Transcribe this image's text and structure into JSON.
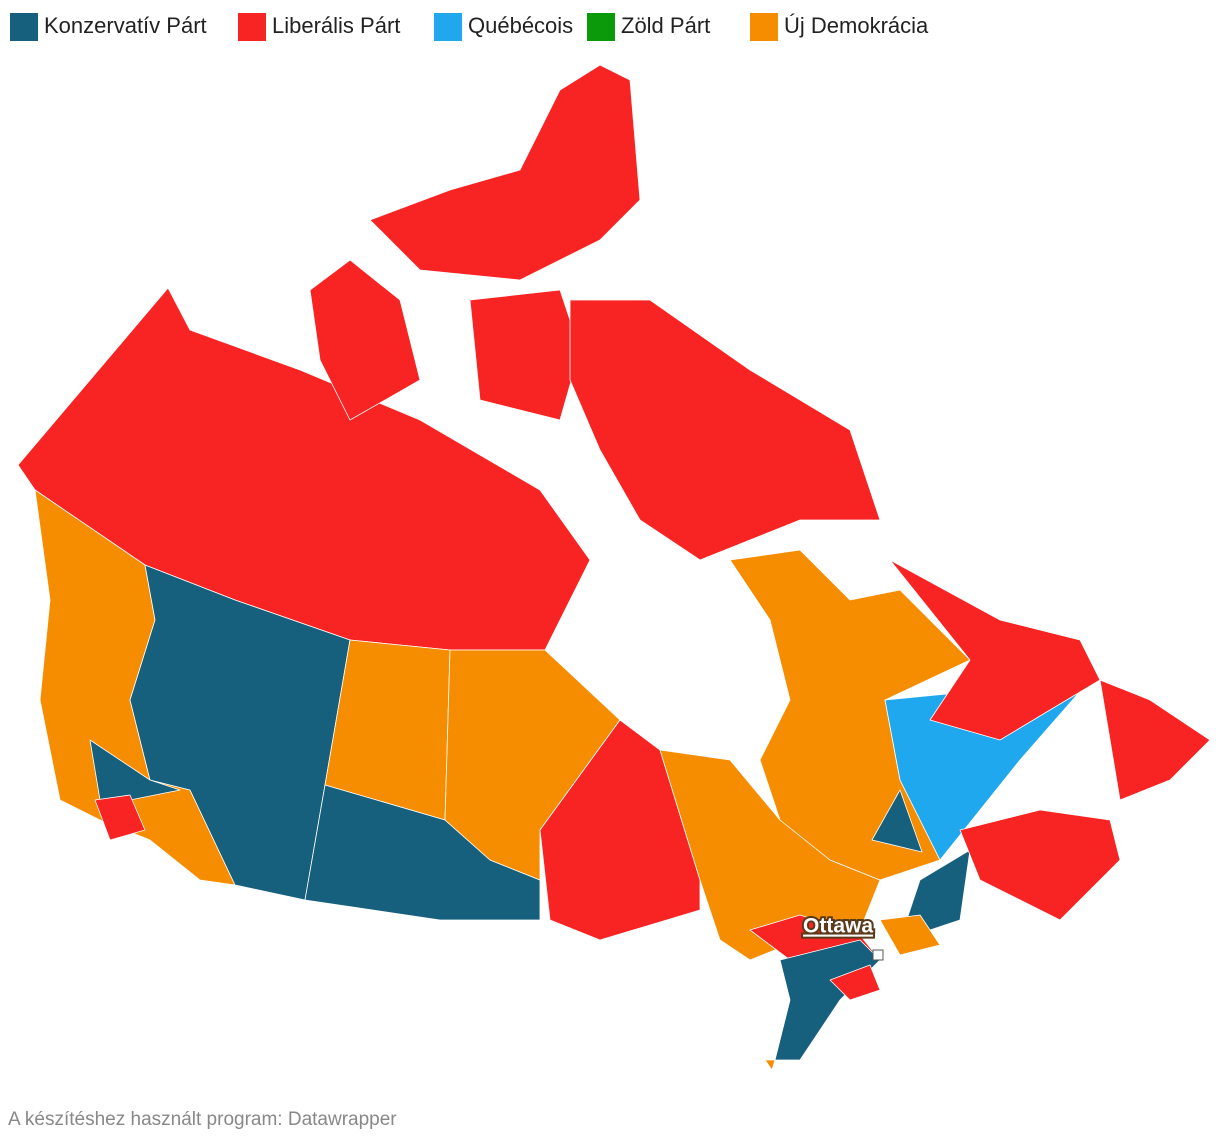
{
  "legend": [
    {
      "label": "Konzervatív Párt",
      "color": "#17607d"
    },
    {
      "label": "Liberális Párt",
      "color": "#f82323"
    },
    {
      "label": "Québécois",
      "color": "#1fa8ee"
    },
    {
      "label": "Zöld Párt",
      "color": "#0a9a0a"
    },
    {
      "label": "Új Demokrácia",
      "color": "#f68d00"
    }
  ],
  "city_label": "Ottawa",
  "footer": "A készítéshez használt program: Datawrapper"
}
